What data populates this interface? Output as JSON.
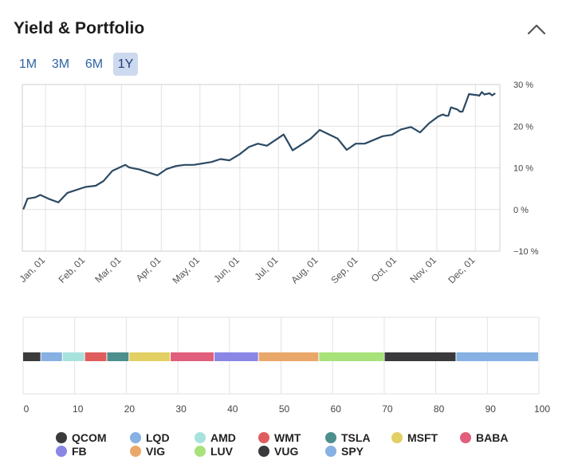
{
  "header": {
    "title": "Yield & Portfolio",
    "collapse_icon": "chevron-up-icon"
  },
  "tabs": [
    {
      "label": "1M",
      "active": false
    },
    {
      "label": "3M",
      "active": false
    },
    {
      "label": "6M",
      "active": false
    },
    {
      "label": "1Y",
      "active": true
    }
  ],
  "chart_data": [
    {
      "type": "line",
      "y_unit": "%",
      "ylim": [
        -10,
        30
      ],
      "y_ticks": [
        30,
        20,
        10,
        0,
        -10
      ],
      "y_tick_labels": [
        "30 %",
        "20 %",
        "10 %",
        "0 %",
        "−10 %"
      ],
      "x_tick_labels": [
        "Jan, 01",
        "Feb, 01",
        "Mar, 01",
        "Apr, 01",
        "May, 01",
        "Jun, 01",
        "Jul, 01",
        "Aug, 01",
        "Sep, 01",
        "Oct, 01",
        "Nov, 01",
        "Dec, 01"
      ],
      "x_tick_dates": [
        "2021-01-01",
        "2021-02-01",
        "2021-03-01",
        "2021-04-01",
        "2021-05-01",
        "2021-06-01",
        "2021-07-01",
        "2021-08-01",
        "2021-09-01",
        "2021-10-01",
        "2021-11-01",
        "2021-12-01"
      ],
      "xlim": [
        "2020-12-14",
        "2021-12-20"
      ],
      "grid": true,
      "color": "#2c4a63",
      "series": [
        {
          "x": [
            "2020-12-15",
            "2020-12-18",
            "2020-12-24",
            "2020-12-28",
            "2021-01-04",
            "2021-01-11",
            "2021-01-18",
            "2021-02-01",
            "2021-02-09",
            "2021-02-15",
            "2021-02-22",
            "2021-03-04",
            "2021-03-07",
            "2021-03-15",
            "2021-03-29",
            "2021-04-05",
            "2021-04-12",
            "2021-04-19",
            "2021-04-26",
            "2021-05-10",
            "2021-05-17",
            "2021-05-24",
            "2021-06-01",
            "2021-06-08",
            "2021-06-15",
            "2021-06-22",
            "2021-07-05",
            "2021-07-12",
            "2021-07-26",
            "2021-08-02",
            "2021-08-16",
            "2021-08-23",
            "2021-08-30",
            "2021-09-06",
            "2021-09-20",
            "2021-09-27",
            "2021-10-04",
            "2021-10-12",
            "2021-10-19",
            "2021-10-26",
            "2021-11-02",
            "2021-11-04",
            "2021-11-06",
            "2021-11-08",
            "2021-11-10",
            "2021-11-12",
            "2021-11-17",
            "2021-11-19",
            "2021-11-21",
            "2021-11-26",
            "2021-12-01",
            "2021-12-02",
            "2021-12-04",
            "2021-12-06",
            "2021-12-08",
            "2021-12-12",
            "2021-12-14",
            "2021-12-16"
          ],
          "y": [
            0.2,
            2.6,
            2.9,
            3.5,
            2.5,
            1.7,
            4.0,
            5.4,
            5.7,
            6.8,
            9.3,
            10.7,
            10.1,
            9.6,
            8.2,
            9.7,
            10.4,
            10.7,
            10.7,
            11.4,
            12.1,
            11.8,
            13.3,
            15.0,
            15.8,
            15.3,
            18.0,
            14.2,
            17.0,
            19.1,
            17.0,
            14.3,
            15.8,
            15.8,
            17.6,
            17.9,
            19.2,
            19.8,
            18.5,
            20.7,
            22.3,
            22.6,
            22.8,
            22.5,
            22.5,
            24.5,
            24.0,
            23.5,
            23.5,
            27.7,
            27.5,
            27.5,
            27.3,
            28.2,
            27.6,
            27.9,
            27.4,
            27.8
          ]
        }
      ]
    },
    {
      "type": "bar",
      "orientation": "horizontal-stacked",
      "xlim": [
        0,
        100
      ],
      "x_ticks": [
        0,
        10,
        20,
        30,
        40,
        50,
        60,
        70,
        80,
        90,
        100
      ],
      "grid": true,
      "series": [
        {
          "name": "QCOM",
          "value": 3.5,
          "color": "#3b3b3b"
        },
        {
          "name": "LQD",
          "value": 4.2,
          "color": "#86b1e2"
        },
        {
          "name": "AMD",
          "value": 4.3,
          "color": "#a8e2dc"
        },
        {
          "name": "WMT",
          "value": 4.3,
          "color": "#e05d5d"
        },
        {
          "name": "TSLA",
          "value": 4.3,
          "color": "#4d8f8c"
        },
        {
          "name": "MSFT",
          "value": 8.0,
          "color": "#e2d064"
        },
        {
          "name": "BABA",
          "value": 8.5,
          "color": "#e15f7c"
        },
        {
          "name": "FB",
          "value": 8.6,
          "color": "#8a86e6"
        },
        {
          "name": "VIG",
          "value": 11.7,
          "color": "#e9a86a"
        },
        {
          "name": "LUV",
          "value": 12.7,
          "color": "#a8e27a"
        },
        {
          "name": "VUG",
          "value": 13.9,
          "color": "#3a3a3c"
        },
        {
          "name": "SPY",
          "value": 16.0,
          "color": "#86b1e2"
        }
      ]
    }
  ]
}
